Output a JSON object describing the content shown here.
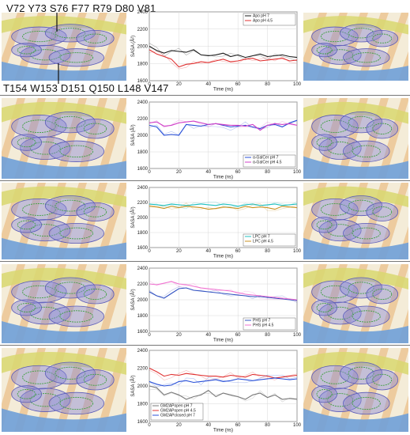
{
  "header_labels": {
    "top": "V72 Y73 S76 F77 R79 D80 V81",
    "bottom": "T154 W153 D151 Q150 L148 V147"
  },
  "colors": {
    "dark_line": "#1a1a1a",
    "red": "#e03030",
    "blue": "#2850d8",
    "magenta": "#d040c8",
    "cyan": "#20c0c0",
    "orange": "#c89020",
    "pink": "#f070d0",
    "navy": "#3050c0",
    "gray": "#7a7a7a",
    "mol_yellow": "#d8d870",
    "mol_orange": "#e8b070",
    "mol_blue": "#6fa0d8",
    "mesh_purple": "#8a8ad8",
    "density_green": "#40a040"
  },
  "chart_data": [
    {
      "type": "line",
      "xlabel": "Time (ns)",
      "ylabel": "SASA (Å²)",
      "xlim": [
        0,
        100
      ],
      "ylim": [
        1600,
        2400
      ],
      "x_ticks": [
        0,
        20,
        40,
        60,
        80,
        100
      ],
      "y_ticks": [
        1600,
        1800,
        2000,
        2200,
        2400
      ],
      "grid": true,
      "legend_position": "top-right",
      "x": [
        0,
        5,
        10,
        15,
        20,
        25,
        30,
        35,
        40,
        45,
        50,
        55,
        60,
        65,
        70,
        75,
        80,
        85,
        90,
        95,
        100
      ],
      "series": [
        {
          "name": "Apo pH 7",
          "color": "#1a1a1a",
          "values": [
            2000,
            1950,
            1920,
            1950,
            1940,
            1930,
            1960,
            1900,
            1890,
            1900,
            1920,
            1880,
            1900,
            1870,
            1890,
            1910,
            1880,
            1890,
            1900,
            1880,
            1870
          ]
        },
        {
          "name": "Apo pH 4.5",
          "color": "#e03030",
          "values": [
            1960,
            1910,
            1880,
            1850,
            1760,
            1790,
            1800,
            1820,
            1810,
            1830,
            1850,
            1820,
            1830,
            1850,
            1860,
            1830,
            1840,
            1850,
            1860,
            1830,
            1840
          ]
        }
      ]
    },
    {
      "type": "line",
      "xlabel": "Time (ns)",
      "ylabel": "SASA (Å²)",
      "xlim": [
        0,
        100
      ],
      "ylim": [
        1600,
        2400
      ],
      "x_ticks": [
        0,
        20,
        40,
        60,
        80,
        100
      ],
      "y_ticks": [
        1600,
        1800,
        2000,
        2200,
        2400
      ],
      "grid": true,
      "legend_position": "bottom-right",
      "x": [
        0,
        5,
        10,
        15,
        20,
        25,
        30,
        35,
        40,
        45,
        50,
        55,
        60,
        65,
        70,
        75,
        80,
        85,
        90,
        95,
        100
      ],
      "series": [
        {
          "name": "α-GalCer pH 7",
          "color": "#2850d8",
          "values": [
            2120,
            2100,
            2000,
            2010,
            2000,
            2130,
            2120,
            2110,
            2130,
            2140,
            2120,
            2100,
            2110,
            2120,
            2100,
            2080,
            2120,
            2130,
            2100,
            2150,
            2180
          ]
        },
        {
          "name": "α-GalCer pH 4.5",
          "color": "#d040c8",
          "values": [
            2150,
            2160,
            2110,
            2120,
            2150,
            2160,
            2170,
            2150,
            2130,
            2140,
            2130,
            2120,
            2120,
            2110,
            2130,
            2060,
            2120,
            2140,
            2130,
            2140,
            2120
          ]
        }
      ]
    },
    {
      "type": "line",
      "xlabel": "Time (ns)",
      "ylabel": "SASA (Å²)",
      "xlim": [
        0,
        100
      ],
      "ylim": [
        1600,
        2400
      ],
      "x_ticks": [
        0,
        20,
        40,
        60,
        80,
        100
      ],
      "y_ticks": [
        1600,
        1800,
        2000,
        2200,
        2400
      ],
      "grid": true,
      "legend_position": "bottom-right",
      "x": [
        0,
        5,
        10,
        15,
        20,
        25,
        30,
        35,
        40,
        45,
        50,
        55,
        60,
        65,
        70,
        75,
        80,
        85,
        90,
        95,
        100
      ],
      "series": [
        {
          "name": "LPC pH 7",
          "color": "#20c0c0",
          "values": [
            2180,
            2170,
            2160,
            2180,
            2170,
            2160,
            2170,
            2180,
            2170,
            2160,
            2180,
            2170,
            2150,
            2170,
            2180,
            2160,
            2170,
            2180,
            2160,
            2170,
            2180
          ]
        },
        {
          "name": "LPC pH 4.5",
          "color": "#c89020",
          "values": [
            2150,
            2140,
            2120,
            2150,
            2130,
            2150,
            2140,
            2130,
            2110,
            2120,
            2140,
            2130,
            2120,
            2150,
            2130,
            2140,
            2130,
            2110,
            2150,
            2140,
            2130
          ]
        }
      ]
    },
    {
      "type": "line",
      "xlabel": "Time (ns)",
      "ylabel": "SASA (Å²)",
      "xlim": [
        0,
        100
      ],
      "ylim": [
        1600,
        2400
      ],
      "x_ticks": [
        0,
        20,
        40,
        60,
        80,
        100
      ],
      "y_ticks": [
        1600,
        1800,
        2000,
        2200,
        2400
      ],
      "grid": true,
      "legend_position": "bottom-right",
      "x": [
        0,
        5,
        10,
        15,
        20,
        25,
        30,
        35,
        40,
        45,
        50,
        55,
        60,
        65,
        70,
        75,
        80,
        85,
        90,
        95,
        100
      ],
      "series": [
        {
          "name": "PHS pH 7",
          "color": "#3050c0",
          "values": [
            2100,
            2050,
            2020,
            2080,
            2140,
            2150,
            2120,
            2110,
            2100,
            2090,
            2080,
            2070,
            2060,
            2050,
            2040,
            2040,
            2030,
            2020,
            2010,
            2000,
            1990
          ]
        },
        {
          "name": "PHS pH 4.5",
          "color": "#f070d0",
          "values": [
            2200,
            2190,
            2210,
            2230,
            2200,
            2190,
            2170,
            2150,
            2140,
            2130,
            2120,
            2110,
            2090,
            2070,
            2060,
            2050,
            2040,
            2030,
            2020,
            2010,
            2000
          ]
        }
      ]
    },
    {
      "type": "line",
      "xlabel": "Time (ns)",
      "ylabel": "SASA (Å²)",
      "xlim": [
        0,
        100
      ],
      "ylim": [
        1600,
        2400
      ],
      "x_ticks": [
        0,
        20,
        40,
        60,
        80,
        100
      ],
      "y_ticks": [
        1600,
        1800,
        2000,
        2200,
        2400
      ],
      "grid": true,
      "legend_position": "bottom-left",
      "x": [
        0,
        5,
        10,
        15,
        20,
        25,
        30,
        35,
        40,
        45,
        50,
        55,
        60,
        65,
        70,
        75,
        80,
        85,
        90,
        95,
        100
      ],
      "series": [
        {
          "name": "GM2APopen pH 7",
          "color": "#7a7a7a",
          "values": [
            2000,
            1980,
            1900,
            1930,
            1900,
            1850,
            1880,
            1900,
            1950,
            1880,
            1920,
            1900,
            1880,
            1850,
            1900,
            1920,
            1870,
            1900,
            1850,
            1860,
            1850
          ]
        },
        {
          "name": "GM2APopen pH 4.5",
          "color": "#e03030",
          "values": [
            2200,
            2160,
            2110,
            2130,
            2120,
            2140,
            2130,
            2120,
            2110,
            2110,
            2100,
            2120,
            2110,
            2100,
            2130,
            2120,
            2110,
            2090,
            2100,
            2110,
            2120
          ]
        },
        {
          "name": "GM2APclosed pH 7",
          "color": "#2850d8",
          "values": [
            2050,
            2020,
            2000,
            2010,
            2050,
            2060,
            2040,
            2050,
            2060,
            2070,
            2050,
            2060,
            2080,
            2070,
            2060,
            2070,
            2080,
            2090,
            2080,
            2070,
            2080
          ]
        }
      ]
    }
  ]
}
